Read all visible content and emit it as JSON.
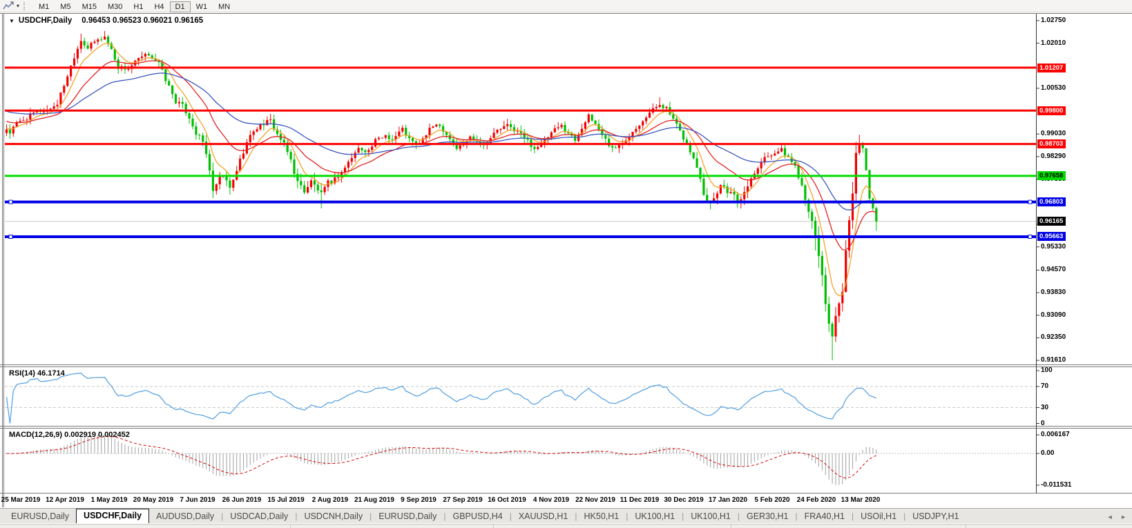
{
  "toolbar": {
    "timeframes": [
      "M1",
      "M5",
      "M15",
      "M30",
      "H1",
      "H4",
      "D1",
      "W1",
      "MN"
    ],
    "active_timeframe": "D1",
    "indicator_icon": "chart-line-icon",
    "dropdown_caret": "▾"
  },
  "window": {
    "title_symbol": "USDCHF,Daily",
    "ohlc": "0.96453 0.96523 0.96021 0.96165",
    "open": "0.96453",
    "high": "0.96523",
    "low": "0.96021",
    "close": "0.96165",
    "dropdown_glyph": "▼"
  },
  "panels": {
    "rsi": {
      "label": "RSI(14) 46.1714"
    },
    "macd": {
      "label": "MACD(12,26,9) 0.002919 0.002452"
    }
  },
  "tabs": {
    "items": [
      {
        "label": "EURUSD,Daily",
        "active": false
      },
      {
        "label": "USDCHF,Daily",
        "active": true
      },
      {
        "label": "AUDUSD,Daily",
        "active": false
      },
      {
        "label": "USDCAD,Daily",
        "active": false
      },
      {
        "label": "USDCNH,Daily",
        "active": false
      },
      {
        "label": "EURUSD,Daily",
        "active": false
      },
      {
        "label": "GBPUSD,H4",
        "active": false
      },
      {
        "label": "XAUUSD,H1",
        "active": false
      },
      {
        "label": "HK50,H1",
        "active": false
      },
      {
        "label": "UK100,H1",
        "active": false
      },
      {
        "label": "UK100,H1",
        "active": false
      },
      {
        "label": "GER30,H1",
        "active": false
      },
      {
        "label": "FRA40,H1",
        "active": false
      },
      {
        "label": "USOil,H1",
        "active": false
      },
      {
        "label": "USDJPY,H1",
        "active": false
      }
    ],
    "scroll_left_glyph": "◄",
    "scroll_right_glyph": "►"
  },
  "chart_data": {
    "type": "candlestick",
    "symbol": "USDCHF",
    "period": "Daily",
    "n_candles": 258,
    "last_close": 0.96165,
    "bull_color": "#F20000",
    "bear_color": "#00BE00",
    "close_waypoints": [
      [
        0,
        0.992
      ],
      [
        1,
        0.9907
      ],
      [
        3,
        0.9938
      ],
      [
        6,
        0.9956
      ],
      [
        9,
        0.9978
      ],
      [
        12,
        0.998
      ],
      [
        15,
        1.0003
      ],
      [
        18,
        1.0095
      ],
      [
        20,
        1.0158
      ],
      [
        22,
        1.0212
      ],
      [
        24,
        1.0185
      ],
      [
        26,
        1.0205
      ],
      [
        29,
        1.0222
      ],
      [
        31,
        1.018
      ],
      [
        33,
        1.0122
      ],
      [
        36,
        1.0118
      ],
      [
        39,
        1.0148
      ],
      [
        42,
        1.0165
      ],
      [
        45,
        1.0135
      ],
      [
        47,
        1.0082
      ],
      [
        50,
        1.001
      ],
      [
        52,
        0.9995
      ],
      [
        54,
        0.9958
      ],
      [
        56,
        0.9905
      ],
      [
        58,
        0.9878
      ],
      [
        60,
        0.979
      ],
      [
        61,
        0.9706
      ],
      [
        62,
        0.9738
      ],
      [
        64,
        0.9768
      ],
      [
        66,
        0.9722
      ],
      [
        67,
        0.9752
      ],
      [
        69,
        0.9818
      ],
      [
        71,
        0.9875
      ],
      [
        73,
        0.9915
      ],
      [
        76,
        0.9938
      ],
      [
        78,
        0.9946
      ],
      [
        80,
        0.9902
      ],
      [
        82,
        0.9868
      ],
      [
        84,
        0.9818
      ],
      [
        86,
        0.9744
      ],
      [
        88,
        0.9718
      ],
      [
        90,
        0.9746
      ],
      [
        92,
        0.9722
      ],
      [
        93,
        0.9702
      ],
      [
        95,
        0.974
      ],
      [
        97,
        0.9756
      ],
      [
        99,
        0.9778
      ],
      [
        102,
        0.9826
      ],
      [
        104,
        0.9856
      ],
      [
        107,
        0.9848
      ],
      [
        109,
        0.988
      ],
      [
        112,
        0.99
      ],
      [
        114,
        0.9886
      ],
      [
        117,
        0.992
      ],
      [
        119,
        0.9886
      ],
      [
        121,
        0.9866
      ],
      [
        123,
        0.9886
      ],
      [
        125,
        0.9916
      ],
      [
        127,
        0.994
      ],
      [
        129,
        0.9918
      ],
      [
        131,
        0.9888
      ],
      [
        133,
        0.9856
      ],
      [
        135,
        0.987
      ],
      [
        137,
        0.9893
      ],
      [
        139,
        0.9883
      ],
      [
        141,
        0.9866
      ],
      [
        143,
        0.9891
      ],
      [
        145,
        0.9916
      ],
      [
        148,
        0.993
      ],
      [
        150,
        0.9918
      ],
      [
        152,
        0.9903
      ],
      [
        154,
        0.988
      ],
      [
        156,
        0.9856
      ],
      [
        158,
        0.987
      ],
      [
        160,
        0.9893
      ],
      [
        162,
        0.9916
      ],
      [
        164,
        0.993
      ],
      [
        166,
        0.9906
      ],
      [
        168,
        0.9883
      ],
      [
        170,
        0.9926
      ],
      [
        172,
        0.996
      ],
      [
        174,
        0.9936
      ],
      [
        176,
        0.9903
      ],
      [
        178,
        0.9868
      ],
      [
        180,
        0.9854
      ],
      [
        182,
        0.9876
      ],
      [
        184,
        0.99
      ],
      [
        186,
        0.9926
      ],
      [
        188,
        0.995
      ],
      [
        191,
        0.9983
      ],
      [
        193,
        1.0003
      ],
      [
        195,
        0.9986
      ],
      [
        197,
        0.995
      ],
      [
        199,
        0.991
      ],
      [
        201,
        0.987
      ],
      [
        203,
        0.982
      ],
      [
        205,
        0.9766
      ],
      [
        206,
        0.971
      ],
      [
        208,
        0.968
      ],
      [
        210,
        0.9716
      ],
      [
        211,
        0.9738
      ],
      [
        213,
        0.972
      ],
      [
        215,
        0.9698
      ],
      [
        217,
        0.968
      ],
      [
        218,
        0.9716
      ],
      [
        220,
        0.9758
      ],
      [
        222,
        0.9798
      ],
      [
        224,
        0.9826
      ],
      [
        227,
        0.9844
      ],
      [
        229,
        0.985
      ],
      [
        231,
        0.9826
      ],
      [
        233,
        0.9798
      ],
      [
        234,
        0.9766
      ],
      [
        235,
        0.9736
      ],
      [
        236,
        0.9698
      ],
      [
        237,
        0.9658
      ],
      [
        238,
        0.9608
      ],
      [
        239,
        0.9558
      ],
      [
        240,
        0.9508
      ],
      [
        241,
        0.9438
      ],
      [
        242,
        0.9348
      ],
      [
        243,
        0.9288
      ],
      [
        244,
        0.924
      ],
      [
        245,
        0.9298
      ],
      [
        246,
        0.9338
      ],
      [
        247,
        0.938
      ],
      [
        248,
        0.952
      ],
      [
        250,
        0.97
      ],
      [
        251,
        0.985
      ],
      [
        252,
        0.9868
      ],
      [
        253,
        0.9853
      ],
      [
        254,
        0.9788
      ],
      [
        255,
        0.9698
      ],
      [
        256,
        0.9663
      ],
      [
        257,
        0.96165
      ]
    ],
    "key_candles": [
      {
        "i": 22,
        "high": 1.0232
      },
      {
        "i": 29,
        "high": 1.0241
      },
      {
        "i": 61,
        "low": 0.9693
      },
      {
        "i": 93,
        "low": 0.9659
      },
      {
        "i": 193,
        "high": 1.0023
      },
      {
        "i": 244,
        "low": 0.9161
      },
      {
        "i": 252,
        "high": 0.9901
      },
      {
        "i": 257,
        "low": 0.9586
      }
    ],
    "moving_averages": [
      {
        "name": "fast-ma",
        "period": 7,
        "color": "#F5A028",
        "init": 0.9925
      },
      {
        "name": "mid-ma",
        "period": 20,
        "color": "#E02020",
        "init": 0.9948
      },
      {
        "name": "slow-ma",
        "period": 48,
        "color": "#3A56C0",
        "init": 0.998
      }
    ],
    "horizontal_lines": [
      {
        "price": 1.01207,
        "label": "1.01207",
        "color": "#FF0000",
        "thickness": 3,
        "badge_fg": "#FFFFFF",
        "handles": false
      },
      {
        "price": 0.998,
        "label": "0.99800",
        "color": "#FF0000",
        "thickness": 3,
        "badge_fg": "#FFFFFF",
        "handles": false
      },
      {
        "price": 0.98703,
        "label": "0.98703",
        "color": "#FF0000",
        "thickness": 3,
        "badge_fg": "#FFFFFF",
        "handles": false
      },
      {
        "price": 0.97658,
        "label": "0.97658",
        "color": "#00DC00",
        "thickness": 3,
        "badge_fg": "#000000",
        "handles": false
      },
      {
        "price": 0.96803,
        "label": "0.96803",
        "color": "#0000E6",
        "thickness": 4,
        "badge_fg": "#FFFFFF",
        "handles": true
      },
      {
        "price": 0.95663,
        "label": "0.95663",
        "color": "#0000E6",
        "thickness": 4,
        "badge_fg": "#FFFFFF",
        "handles": true
      }
    ],
    "current_price": {
      "value": "0.96165",
      "price": 0.96165,
      "line_color": "#C8C8C8",
      "badge_bg": "#000000",
      "badge_fg": "#FFFFFF"
    },
    "y_axis_labels": [
      "1.02750",
      "1.02010",
      "1.00530",
      "0.99030",
      "0.98290",
      "0.97550",
      "0.96070",
      "0.95330",
      "0.94570",
      "0.93830",
      "0.93090",
      "0.92350",
      "0.91610"
    ],
    "x_axis_labels": [
      "25 Mar 2019",
      "12 Apr 2019",
      "1 May 2019",
      "20 May 2019",
      "7 Jun 2019",
      "26 Jun 2019",
      "15 Jul 2019",
      "2 Aug 2019",
      "21 Aug 2019",
      "9 Sep 2019",
      "27 Sep 2019",
      "16 Oct 2019",
      "4 Nov 2019",
      "22 Nov 2019",
      "11 Dec 2019",
      "30 Dec 2019",
      "17 Jan 2020",
      "5 Feb 2020",
      "24 Feb 2020",
      "13 Mar 2020"
    ],
    "rsi": {
      "period": 14,
      "value": 46.1714,
      "color": "#4D9CE0",
      "levels": [
        "100",
        "70",
        "30",
        "0"
      ],
      "level_values": [
        100,
        70,
        30,
        0
      ]
    },
    "macd": {
      "fast": 12,
      "slow": 26,
      "signal": 9,
      "macd_value": 0.002919,
      "signal_value": 0.002452,
      "axis_labels": [
        "0.006167",
        "0.00",
        "-0.011531"
      ],
      "scale_max": 0.006167,
      "scale_min": -0.011531,
      "bar_color": "#A0A0A0",
      "signal_color": "#D40000"
    }
  }
}
